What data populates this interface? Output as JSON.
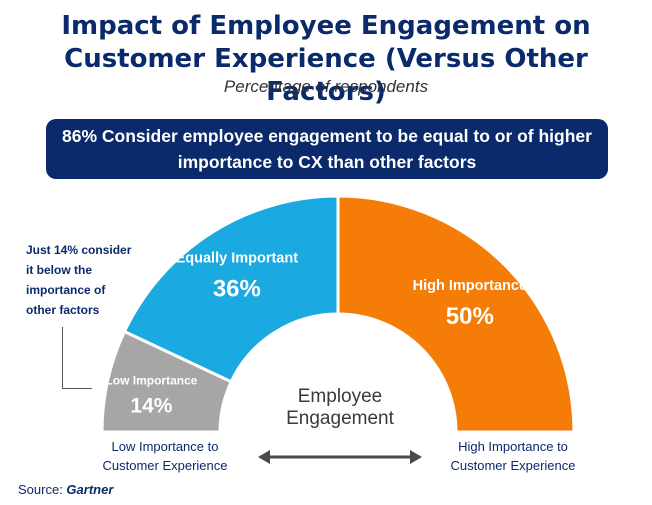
{
  "header": {
    "title_line1": "Impact of Employee Engagement on",
    "title_line2": "Customer Experience (Versus Other Factors)",
    "subtitle": "Percentage of respondents"
  },
  "banner": {
    "line1": "86% Consider employee engagement to be equal to or of higher",
    "line2": "importance to CX than other factors"
  },
  "note": {
    "line1": "Just 14% consider",
    "line2": "it below the",
    "line3": "importance of",
    "line4": "other factors"
  },
  "center_label": {
    "line1": "Employee",
    "line2": "Engagement"
  },
  "axis": {
    "low_line1": "Low Importance to",
    "low_line2": "Customer Experience",
    "high_line1": "High Importance to",
    "high_line2": "Customer Experience"
  },
  "source": {
    "prefix": "Source: ",
    "name": "Gartner"
  },
  "chart_data": {
    "type": "pie",
    "style": "semi-donut",
    "title": "Impact of Employee Engagement on Customer Experience (Versus Other Factors)",
    "subtitle": "Percentage of respondents",
    "slices": [
      {
        "label": "Low Importance",
        "value": 14,
        "display": "14%",
        "color": "#a6a6a6"
      },
      {
        "label": "Equally Important",
        "value": 36,
        "display": "36%",
        "color": "#1aa9e0"
      },
      {
        "label": "High Importance",
        "value": 50,
        "display": "50%",
        "color": "#f47c07"
      }
    ]
  }
}
